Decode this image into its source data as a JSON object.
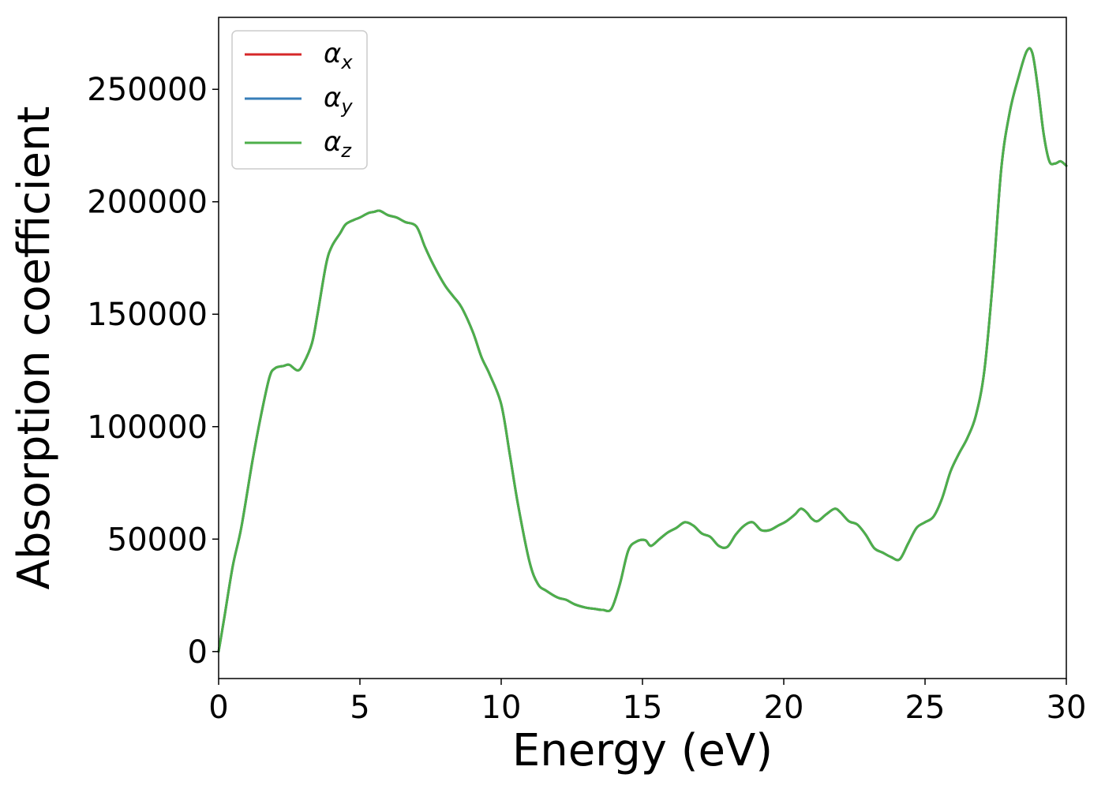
{
  "chart_data": {
    "type": "line",
    "xlabel": "Energy (eV)",
    "ylabel": "Absorption coefficient",
    "xlim": [
      0,
      30
    ],
    "ylim": [
      -12000,
      282000
    ],
    "xticks": [
      0,
      5,
      10,
      15,
      20,
      25,
      30
    ],
    "yticks": [
      0,
      50000,
      100000,
      150000,
      200000,
      250000
    ],
    "xtick_labels": [
      "0",
      "5",
      "10",
      "15",
      "20",
      "25",
      "30"
    ],
    "ytick_labels": [
      "0",
      "50000",
      "100000",
      "150000",
      "200000",
      "250000"
    ],
    "grid": false,
    "legend_position": "top-left",
    "x": [
      0,
      0.2,
      0.5,
      0.8,
      1.2,
      1.5,
      1.8,
      2.0,
      2.3,
      2.5,
      2.8,
      3.0,
      3.3,
      3.5,
      3.8,
      4.0,
      4.3,
      4.5,
      4.8,
      5.0,
      5.3,
      5.5,
      5.7,
      6.0,
      6.3,
      6.6,
      7.0,
      7.3,
      7.6,
      8.0,
      8.3,
      8.6,
      9.0,
      9.3,
      9.6,
      10.0,
      10.3,
      10.6,
      11.0,
      11.3,
      11.6,
      12.0,
      12.3,
      12.6,
      13.0,
      13.3,
      13.6,
      13.9,
      14.2,
      14.5,
      14.8,
      15.1,
      15.3,
      15.6,
      15.9,
      16.2,
      16.5,
      16.8,
      17.1,
      17.4,
      17.7,
      18.0,
      18.3,
      18.6,
      18.9,
      19.2,
      19.5,
      19.8,
      20.1,
      20.4,
      20.6,
      20.8,
      21.0,
      21.2,
      21.5,
      21.8,
      22.0,
      22.3,
      22.6,
      22.9,
      23.2,
      23.5,
      23.8,
      24.1,
      24.4,
      24.7,
      25.0,
      25.3,
      25.6,
      25.9,
      26.2,
      26.5,
      26.8,
      27.1,
      27.4,
      27.7,
      28.0,
      28.3,
      28.6,
      28.8,
      29.0,
      29.2,
      29.4,
      29.6,
      29.8,
      30.0
    ],
    "series": [
      {
        "name": "αx",
        "color": "#d62728",
        "values": [
          0,
          15000,
          38000,
          55000,
          85000,
          105000,
          122000,
          126000,
          127000,
          127500,
          125000,
          128000,
          137000,
          150000,
          172000,
          180000,
          186000,
          190000,
          192000,
          193000,
          195000,
          195500,
          196000,
          194000,
          193000,
          191000,
          189000,
          180000,
          172000,
          163000,
          158000,
          153000,
          142000,
          131000,
          123000,
          110000,
          88000,
          65000,
          40000,
          30000,
          27000,
          24000,
          23000,
          21000,
          19500,
          19000,
          18500,
          19000,
          30000,
          45000,
          49000,
          49500,
          47000,
          50000,
          53000,
          55000,
          57500,
          56000,
          52500,
          51000,
          47000,
          46500,
          52000,
          56000,
          57500,
          54000,
          54000,
          56000,
          58000,
          61000,
          63500,
          62000,
          59000,
          58000,
          61000,
          63500,
          62000,
          58000,
          56500,
          52000,
          46000,
          44000,
          42000,
          41000,
          48000,
          55000,
          57500,
          60000,
          68000,
          80000,
          88000,
          95000,
          105000,
          125000,
          165000,
          215000,
          240000,
          255000,
          267000,
          266000,
          250000,
          230000,
          218000,
          217000,
          218000,
          216000
        ]
      },
      {
        "name": "αy",
        "color": "#377eb8",
        "values": [
          0,
          15000,
          38000,
          55000,
          85000,
          105000,
          122000,
          126000,
          127000,
          127500,
          125000,
          128000,
          137000,
          150000,
          172000,
          180000,
          186000,
          190000,
          192000,
          193000,
          195000,
          195500,
          196000,
          194000,
          193000,
          191000,
          189000,
          180000,
          172000,
          163000,
          158000,
          153000,
          142000,
          131000,
          123000,
          110000,
          88000,
          65000,
          40000,
          30000,
          27000,
          24000,
          23000,
          21000,
          19500,
          19000,
          18500,
          19000,
          30000,
          45000,
          49000,
          49500,
          47000,
          50000,
          53000,
          55000,
          57500,
          56000,
          52500,
          51000,
          47000,
          46500,
          52000,
          56000,
          57500,
          54000,
          54000,
          56000,
          58000,
          61000,
          63500,
          62000,
          59000,
          58000,
          61000,
          63500,
          62000,
          58000,
          56500,
          52000,
          46000,
          44000,
          42000,
          41000,
          48000,
          55000,
          57500,
          60000,
          68000,
          80000,
          88000,
          95000,
          105000,
          125000,
          165000,
          215000,
          240000,
          255000,
          267000,
          266000,
          250000,
          230000,
          218000,
          217000,
          218000,
          216000
        ]
      },
      {
        "name": "αz",
        "color": "#4daf4a",
        "values": [
          0,
          15000,
          38000,
          55000,
          85000,
          105000,
          122000,
          126000,
          127000,
          127500,
          125000,
          128000,
          137000,
          150000,
          172000,
          180000,
          186000,
          190000,
          192000,
          193000,
          195000,
          195500,
          196000,
          194000,
          193000,
          191000,
          189000,
          180000,
          172000,
          163000,
          158000,
          153000,
          142000,
          131000,
          123000,
          110000,
          88000,
          65000,
          40000,
          30000,
          27000,
          24000,
          23000,
          21000,
          19500,
          19000,
          18500,
          19000,
          30000,
          45000,
          49000,
          49500,
          47000,
          50000,
          53000,
          55000,
          57500,
          56000,
          52500,
          51000,
          47000,
          46500,
          52000,
          56000,
          57500,
          54000,
          54000,
          56000,
          58000,
          61000,
          63500,
          62000,
          59000,
          58000,
          61000,
          63500,
          62000,
          58000,
          56500,
          52000,
          46000,
          44000,
          42000,
          41000,
          48000,
          55000,
          57500,
          60000,
          68000,
          80000,
          88000,
          95000,
          105000,
          125000,
          165000,
          215000,
          240000,
          255000,
          267000,
          266000,
          250000,
          230000,
          218000,
          217000,
          218000,
          216000
        ]
      }
    ],
    "legend": [
      {
        "symbol": "α",
        "sub": "x",
        "color": "#d62728"
      },
      {
        "symbol": "α",
        "sub": "y",
        "color": "#377eb8"
      },
      {
        "symbol": "α",
        "sub": "z",
        "color": "#4daf4a"
      }
    ]
  }
}
